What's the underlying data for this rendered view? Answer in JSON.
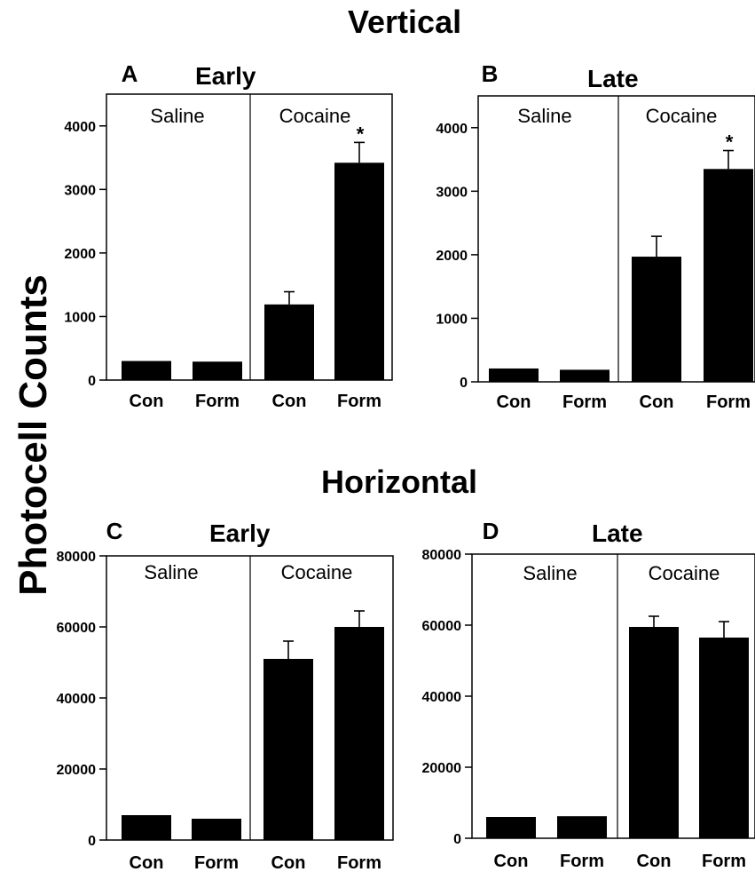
{
  "sections": {
    "vertical_title": "Vertical",
    "horizontal_title": "Horizontal"
  },
  "ylabel": "Photocell Counts",
  "chart_data": [
    {
      "type": "bar",
      "letter": "A",
      "title": "Early",
      "groups": [
        "Saline",
        "Cocaine"
      ],
      "categories": [
        "Con",
        "Form",
        "Con",
        "Form"
      ],
      "values": [
        300,
        290,
        1190,
        3420
      ],
      "errors": [
        0,
        0,
        200,
        320
      ],
      "significant": [
        false,
        false,
        false,
        true
      ],
      "sig_symbol": "*",
      "ylim": [
        0,
        4500
      ],
      "yticks": [
        0,
        1000,
        2000,
        3000,
        4000
      ],
      "ytick_labels": [
        "0",
        "1000",
        "2000",
        "3000",
        "4000"
      ]
    },
    {
      "type": "bar",
      "letter": "B",
      "title": "Late",
      "groups": [
        "Saline",
        "Cocaine"
      ],
      "categories": [
        "Con",
        "Form",
        "Con",
        "Form"
      ],
      "values": [
        210,
        190,
        1970,
        3350
      ],
      "errors": [
        0,
        0,
        320,
        290
      ],
      "significant": [
        false,
        false,
        false,
        true
      ],
      "sig_symbol": "*",
      "ylim": [
        0,
        4500
      ],
      "yticks": [
        0,
        1000,
        2000,
        3000,
        4000
      ],
      "ytick_labels": [
        "0",
        "1000",
        "2000",
        "3000",
        "4000"
      ]
    },
    {
      "type": "bar",
      "letter": "C",
      "title": "Early",
      "groups": [
        "Saline",
        "Cocaine"
      ],
      "categories": [
        "Con",
        "Form",
        "Con",
        "Form"
      ],
      "values": [
        7000,
        6000,
        51000,
        60000
      ],
      "errors": [
        0,
        0,
        5000,
        4500
      ],
      "significant": [
        false,
        false,
        false,
        false
      ],
      "sig_symbol": "*",
      "ylim": [
        0,
        80000
      ],
      "yticks": [
        0,
        20000,
        40000,
        60000,
        80000
      ],
      "ytick_labels": [
        "0",
        "20000",
        "40000",
        "60000",
        "80000"
      ]
    },
    {
      "type": "bar",
      "letter": "D",
      "title": "Late",
      "groups": [
        "Saline",
        "Cocaine"
      ],
      "categories": [
        "Con",
        "Form",
        "Con",
        "Form"
      ],
      "values": [
        6000,
        6200,
        59500,
        56500
      ],
      "errors": [
        0,
        0,
        3000,
        4500
      ],
      "significant": [
        false,
        false,
        false,
        false
      ],
      "sig_symbol": "*",
      "ylim": [
        0,
        80000
      ],
      "yticks": [
        0,
        20000,
        40000,
        60000,
        80000
      ],
      "ytick_labels": [
        "0",
        "20000",
        "40000",
        "60000",
        "80000"
      ]
    }
  ]
}
